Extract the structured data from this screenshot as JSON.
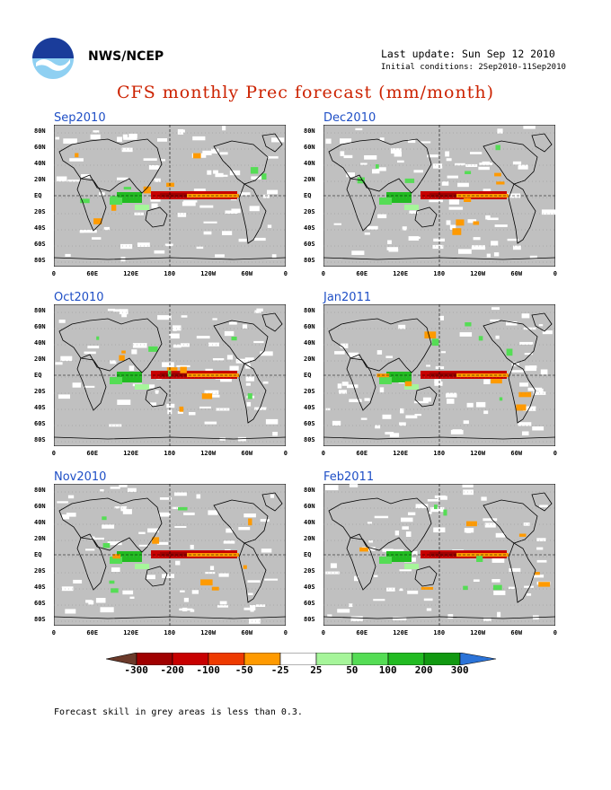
{
  "header": {
    "agency": "NWS/NCEP",
    "last_update": "Last update: Sun Sep 12 2010",
    "initial_conditions": "Initial conditions: 2Sep2010-11Sep2010",
    "title": "CFS monthly Prec forecast (mm/month)"
  },
  "panels": [
    {
      "title": "Sep2010"
    },
    {
      "title": "Dec2010"
    },
    {
      "title": "Oct2010"
    },
    {
      "title": "Jan2011"
    },
    {
      "title": "Nov2010"
    },
    {
      "title": "Feb2011"
    }
  ],
  "lat_labels": [
    "80N",
    "60N",
    "40N",
    "20N",
    "EQ",
    "20S",
    "40S",
    "60S",
    "80S"
  ],
  "lon_labels": [
    "0",
    "60E",
    "120E",
    "180",
    "120W",
    "60W",
    "0"
  ],
  "colorbar": {
    "labels": [
      "-300",
      "-200",
      "-100",
      "-50",
      "-25",
      "25",
      "50",
      "100",
      "200",
      "300"
    ],
    "colors": [
      "#6b3a2a",
      "#a00000",
      "#c80000",
      "#ee3a00",
      "#ff9a00",
      "#ffffff",
      "#a6f59a",
      "#55dd55",
      "#22bb22",
      "#119911",
      "#2b73d8"
    ]
  },
  "footnote": "Forecast skill in grey areas is less than 0.3."
}
